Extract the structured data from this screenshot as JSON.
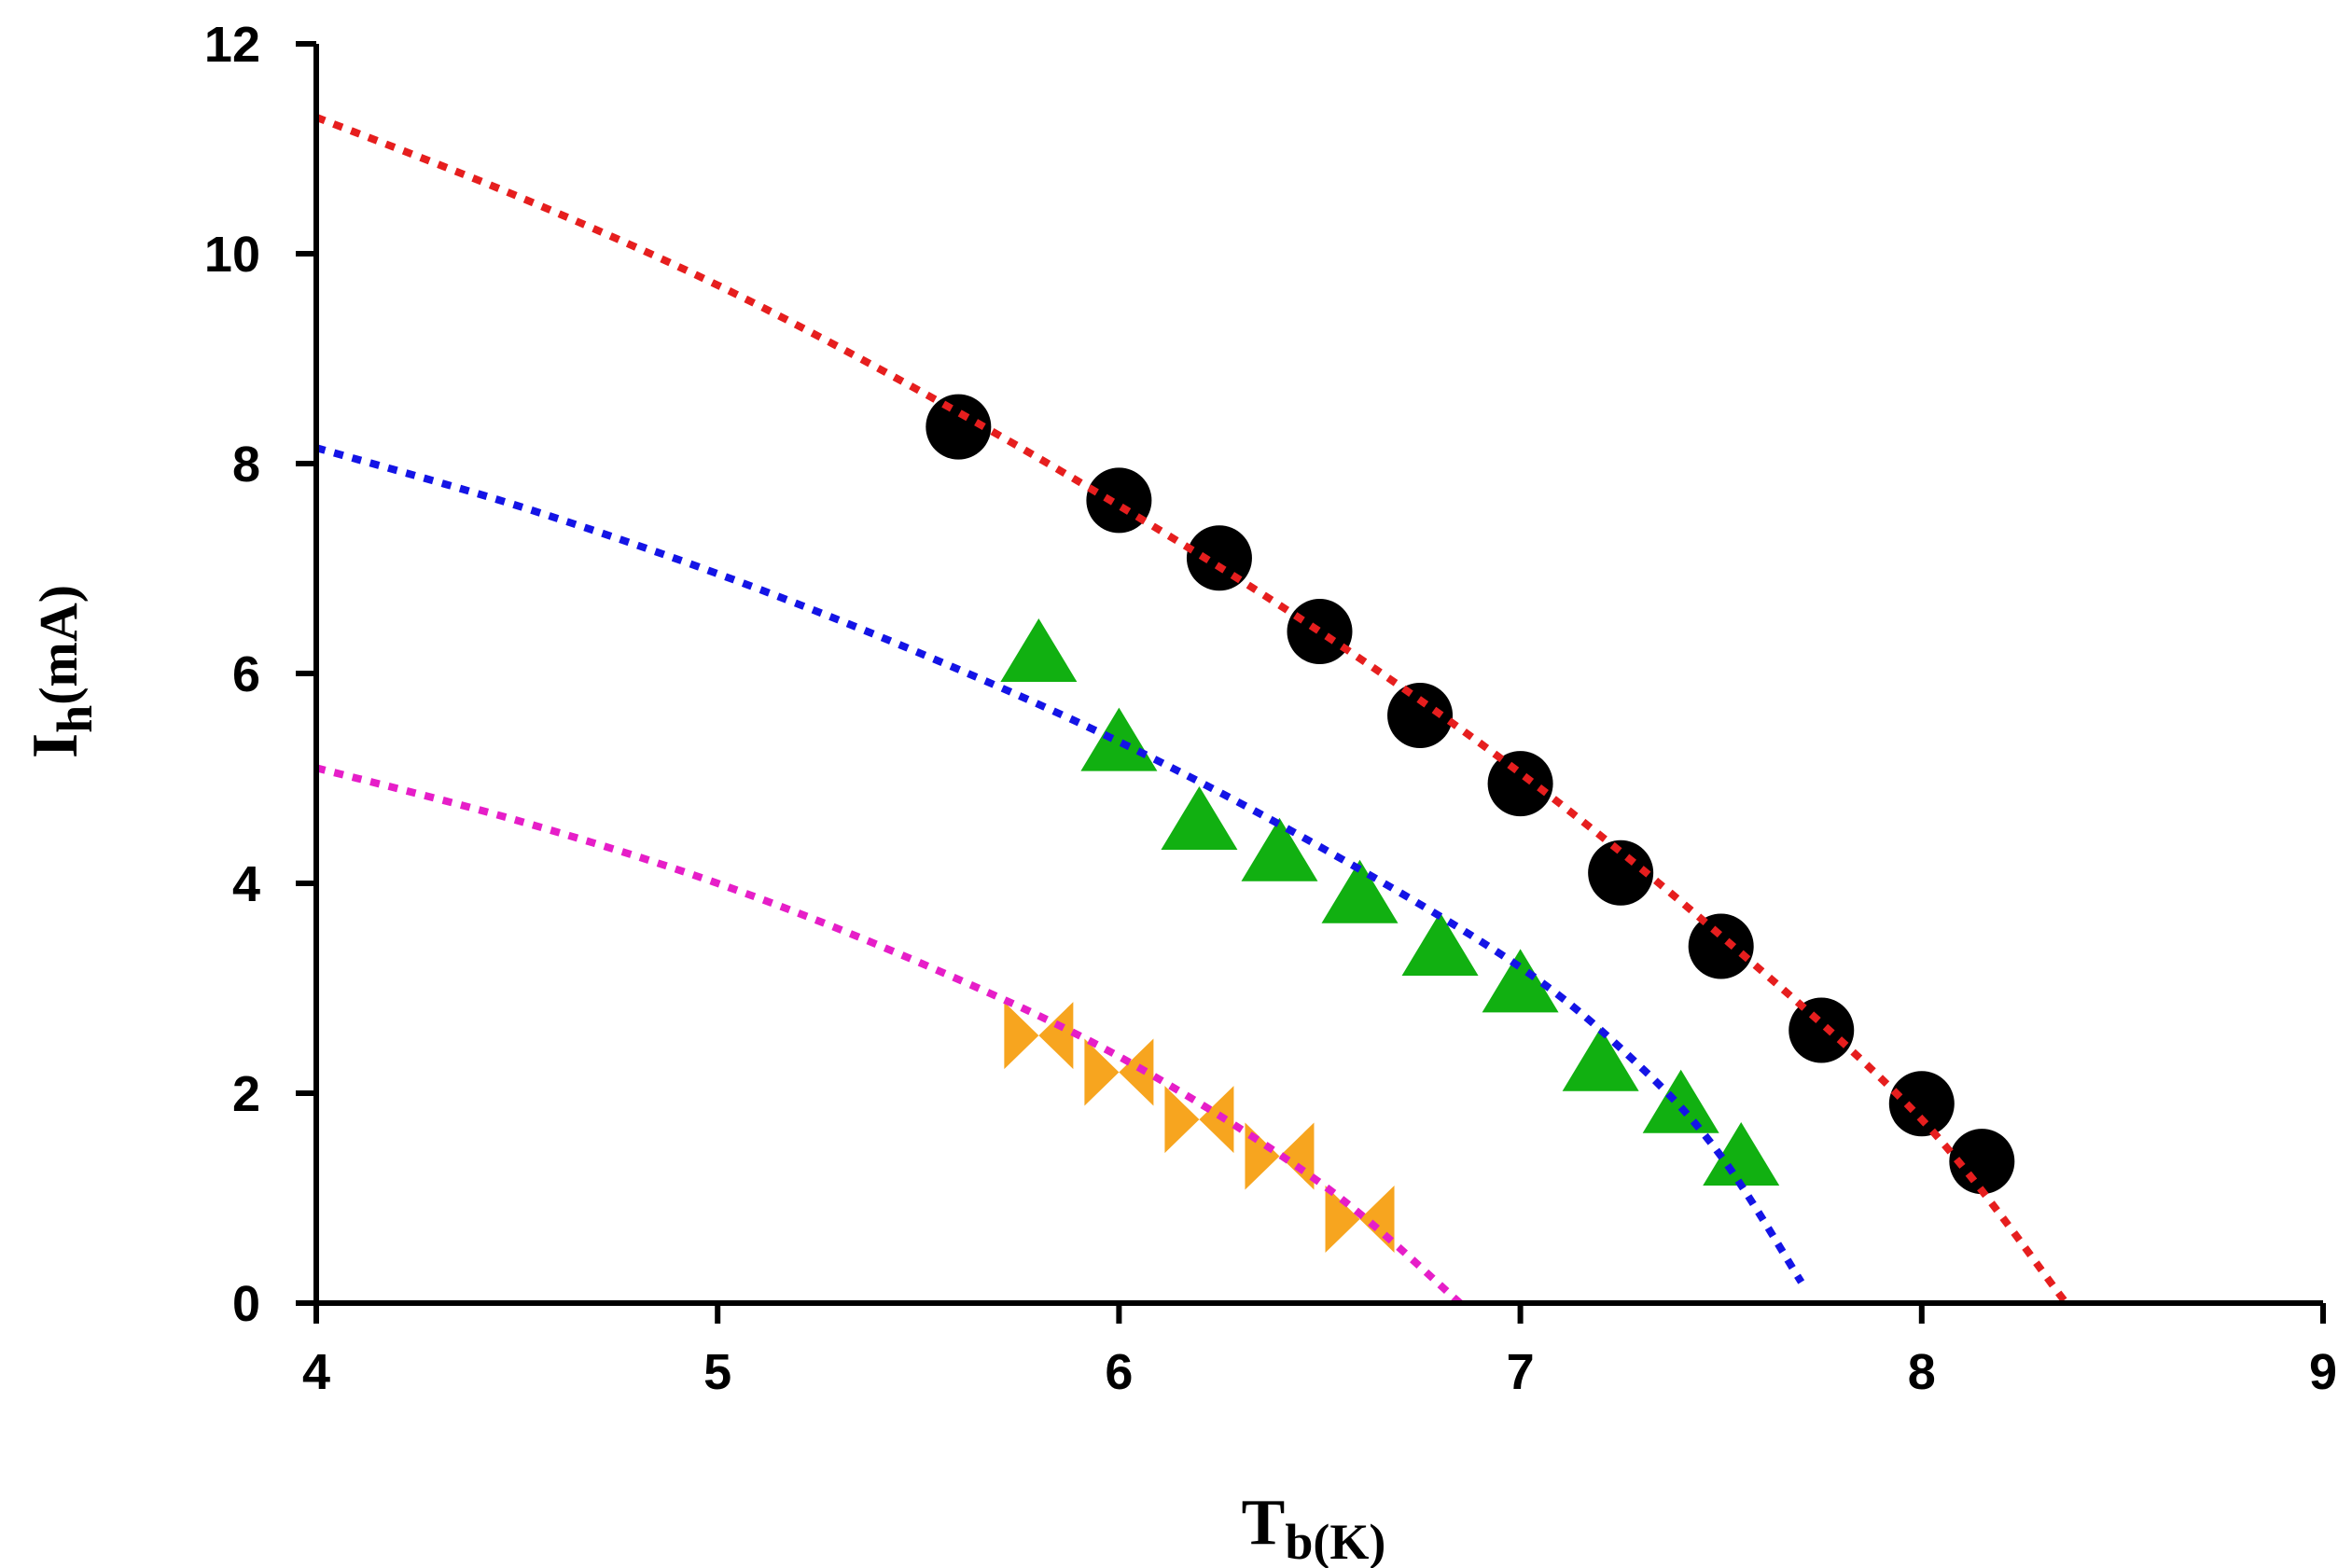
{
  "chart_data": {
    "type": "scatter",
    "title": "",
    "xlabel": {
      "main": "T",
      "sub": "b(K)"
    },
    "ylabel": {
      "main": "I",
      "sub": "h",
      "tail": "(mA)"
    },
    "xlim": [
      4,
      9
    ],
    "ylim": [
      0,
      12
    ],
    "xticks": [
      4,
      5,
      6,
      7,
      8,
      9
    ],
    "yticks": [
      0,
      2,
      4,
      6,
      8,
      10,
      12
    ],
    "grid": false,
    "legend": "none",
    "series": [
      {
        "name": "circles",
        "marker": "circle",
        "color": "#000000",
        "points": [
          [
            5.6,
            8.35
          ],
          [
            6.0,
            7.65
          ],
          [
            6.25,
            7.1
          ],
          [
            6.5,
            6.4
          ],
          [
            6.75,
            5.6
          ],
          [
            7.0,
            4.95
          ],
          [
            7.25,
            4.1
          ],
          [
            7.5,
            3.4
          ],
          [
            7.75,
            2.6
          ],
          [
            8.0,
            1.9
          ],
          [
            8.15,
            1.35
          ]
        ]
      },
      {
        "name": "triangles",
        "marker": "triangle-up",
        "color": "#11b011",
        "points": [
          [
            5.8,
            6.15
          ],
          [
            6.0,
            5.3
          ],
          [
            6.2,
            4.55
          ],
          [
            6.4,
            4.25
          ],
          [
            6.6,
            3.85
          ],
          [
            6.8,
            3.35
          ],
          [
            7.0,
            3.0
          ],
          [
            7.2,
            2.25
          ],
          [
            7.4,
            1.85
          ],
          [
            7.55,
            1.35
          ]
        ]
      },
      {
        "name": "bowties",
        "marker": "bowtie",
        "color": "#f7a51f",
        "points": [
          [
            5.8,
            2.55
          ],
          [
            6.0,
            2.2
          ],
          [
            6.2,
            1.75
          ],
          [
            6.4,
            1.4
          ],
          [
            6.6,
            0.8
          ]
        ]
      }
    ],
    "fits": [
      {
        "name": "fit-red",
        "color": "#e61e1e",
        "style": "dotted",
        "points": [
          [
            4.0,
            11.3
          ],
          [
            4.5,
            10.55
          ],
          [
            5.0,
            9.7
          ],
          [
            5.5,
            8.7
          ],
          [
            6.0,
            7.6
          ],
          [
            6.5,
            6.4
          ],
          [
            7.0,
            5.05
          ],
          [
            7.5,
            3.5
          ],
          [
            8.0,
            1.75
          ],
          [
            8.36,
            0.0
          ]
        ]
      },
      {
        "name": "fit-blue",
        "color": "#1414e6",
        "style": "dotted",
        "points": [
          [
            4.0,
            8.15
          ],
          [
            4.5,
            7.6
          ],
          [
            5.0,
            6.95
          ],
          [
            5.5,
            6.2
          ],
          [
            6.0,
            5.35
          ],
          [
            6.5,
            4.35
          ],
          [
            7.0,
            3.2
          ],
          [
            7.3,
            2.25
          ],
          [
            7.5,
            1.4
          ],
          [
            7.7,
            0.2
          ]
        ]
      },
      {
        "name": "fit-magenta",
        "color": "#e61ec8",
        "style": "dotted",
        "points": [
          [
            4.0,
            5.1
          ],
          [
            4.5,
            4.6
          ],
          [
            5.0,
            4.0
          ],
          [
            5.5,
            3.25
          ],
          [
            6.0,
            2.35
          ],
          [
            6.5,
            1.15
          ],
          [
            6.85,
            0.0
          ]
        ]
      }
    ]
  }
}
